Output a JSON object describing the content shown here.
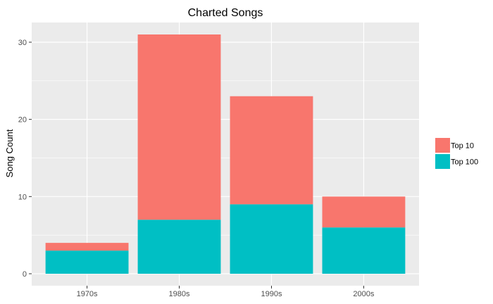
{
  "chart_data": {
    "type": "bar",
    "stacked": true,
    "title": "Charted Songs",
    "xlabel": "",
    "ylabel": "Song Count",
    "categories": [
      "1970s",
      "1980s",
      "1990s",
      "2000s"
    ],
    "series": [
      {
        "name": "Top 100",
        "values": [
          3,
          7,
          9,
          6
        ],
        "color": "#00BFC4"
      },
      {
        "name": "Top 10",
        "values": [
          1,
          24,
          14,
          4
        ],
        "color": "#F8766D"
      }
    ],
    "ylim": [
      -1.55,
      32.55
    ],
    "yticks": [
      0,
      10,
      20,
      30
    ],
    "grid": true,
    "legend_position": "right",
    "panel_background": "#EBEBEB",
    "grid_color": "#FFFFFF"
  },
  "legend": {
    "order": [
      "Top 10",
      "Top 100"
    ]
  }
}
